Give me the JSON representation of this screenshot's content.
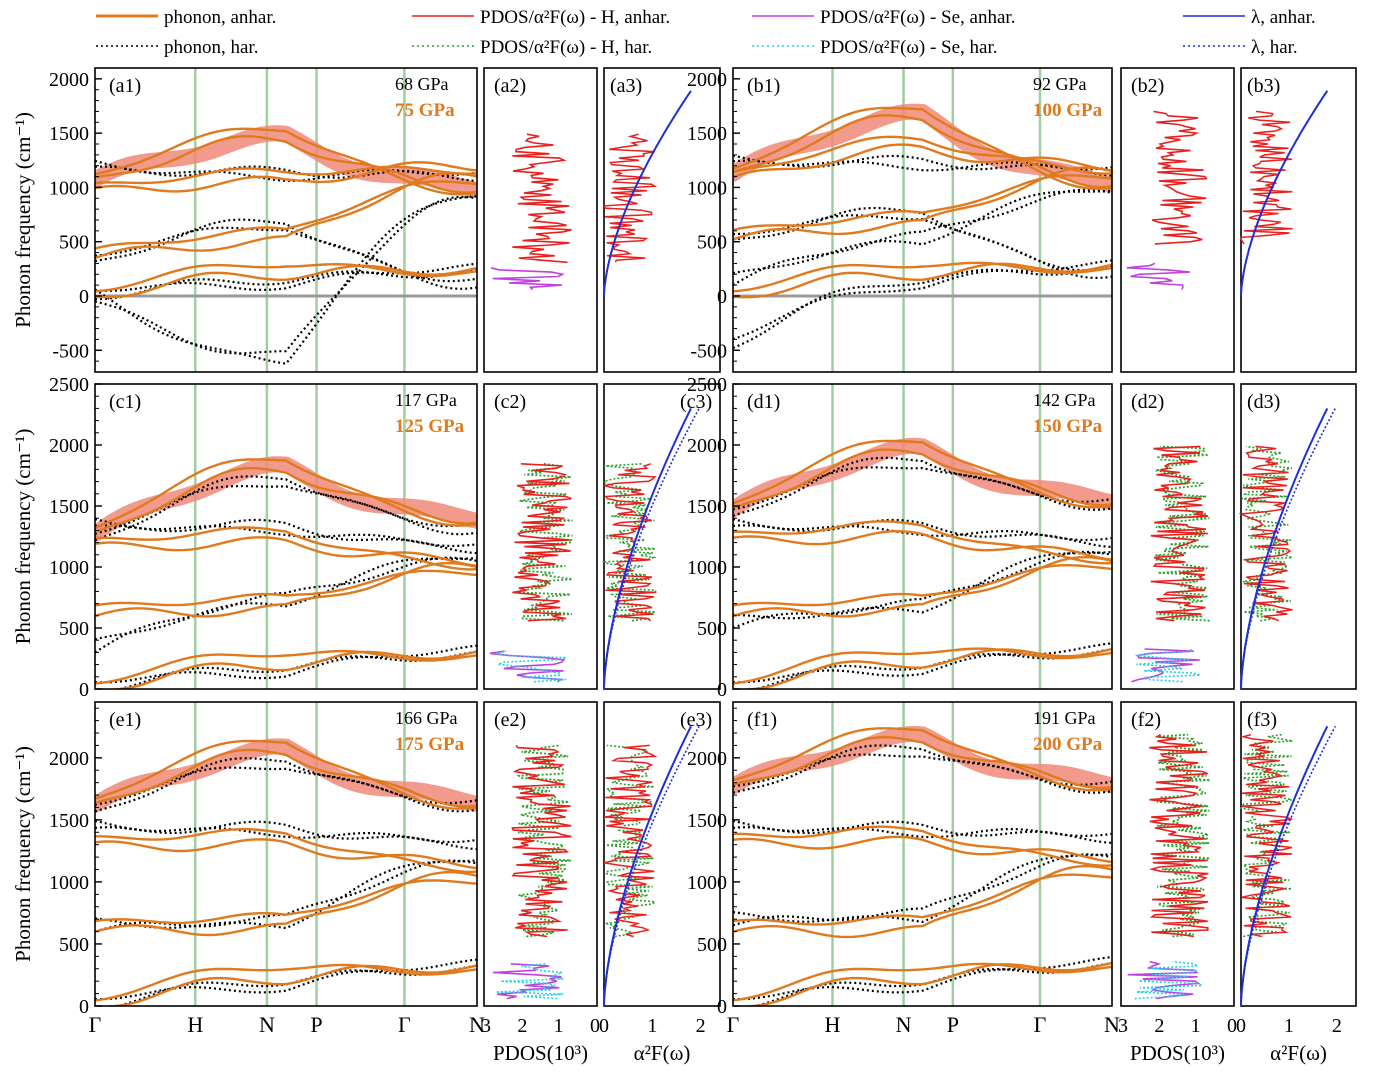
{
  "figure": {
    "legend": [
      {
        "text": "phonon, anhar.",
        "color": "#e07a1f",
        "dash": "solid"
      },
      {
        "text": "phonon, har.",
        "color": "#000000",
        "dash": "dot"
      },
      {
        "text": "PDOS/α²F(ω) - H, anhar.",
        "color": "#e8201e",
        "dash": "solid"
      },
      {
        "text": "PDOS/α²F(ω) - H, har.",
        "color": "#2aa02a",
        "dash": "dot"
      },
      {
        "text": "PDOS/α²F(ω) - Se, anhar.",
        "color": "#c040e0",
        "dash": "solid"
      },
      {
        "text": "PDOS/α²F(ω) - Se, har.",
        "color": "#22d0e8",
        "dash": "dot"
      },
      {
        "text": "λ, anhar.",
        "color": "#1f2fd6",
        "dash": "solid"
      },
      {
        "text": "λ, har.",
        "color": "#1f2fd6",
        "dash": "dot"
      }
    ],
    "ylabel": "Phonon frequency  (cm⁻¹)",
    "pdos_xlabel": "PDOS(10³)",
    "a2f_xlabel": "α²F(ω)",
    "kpoints": [
      "Γ",
      "H",
      "N",
      "P",
      "Γ",
      "N"
    ],
    "pdos_ticks": [
      "3",
      "2",
      "1",
      "0"
    ],
    "a2f_ticks": [
      "0",
      "1",
      "2"
    ],
    "colors": {
      "anhar": "#e07a1f",
      "band": "#f08878",
      "har": "#000000",
      "vline": "#9fcf9f",
      "zero": "#999999",
      "h_anhar": "#e8201e",
      "h_har": "#2aa02a",
      "se_anhar": "#c040e0",
      "se_har": "#22d0e8",
      "lambda": "#1f2fd6"
    }
  },
  "chart_data": [
    {
      "type": "line",
      "panel": "a",
      "labels": [
        "(a1)",
        "(a2)",
        "(a3)"
      ],
      "pressure_har": "68 GPa",
      "pressure_anhar": "75 GPa",
      "ylim": [
        -700,
        2100
      ],
      "yticks": [
        -500,
        0,
        500,
        1000,
        1500,
        2000
      ],
      "show_zero": true,
      "har_pdos": false,
      "anhar": [
        [
          350,
          500,
          1100
        ],
        [
          950,
          1050,
          1200
        ],
        [
          1050,
          1450,
          1000
        ],
        [
          0,
          200,
          250
        ]
      ],
      "har": [
        [
          -50,
          -550,
          900
        ],
        [
          1150,
          1150,
          1100
        ],
        [
          300,
          700,
          100
        ],
        [
          0,
          150,
          220
        ]
      ]
    },
    {
      "type": "line",
      "panel": "b",
      "labels": [
        "(b1)",
        "(b2)",
        "(b3)"
      ],
      "pressure_har": "92 GPa",
      "pressure_anhar": "100 GPa",
      "ylim": [
        -700,
        2100
      ],
      "yticks": [
        -500,
        0,
        500,
        1000,
        1500,
        2000
      ],
      "show_zero": true,
      "har_pdos": false,
      "anhar": [
        [
          520,
          650,
          1150
        ],
        [
          1050,
          1350,
          1200
        ],
        [
          1100,
          1650,
          1050
        ],
        [
          0,
          200,
          280
        ]
      ],
      "har": [
        [
          100,
          550,
          950
        ],
        [
          1200,
          1250,
          1150
        ],
        [
          500,
          800,
          200
        ],
        [
          -450,
          150,
          250
        ]
      ]
    },
    {
      "type": "line",
      "panel": "c",
      "labels": [
        "(c1)",
        "(c2)",
        "(c3)"
      ],
      "pressure_har": "117 GPa",
      "pressure_anhar": "125 GPa",
      "ylim": [
        0,
        2500
      ],
      "yticks": [
        0,
        500,
        1000,
        1500,
        2000,
        2500
      ],
      "show_zero": false,
      "har_pdos": true,
      "anhar": [
        [
          600,
          650,
          1000
        ],
        [
          1150,
          1200,
          1050
        ],
        [
          1250,
          1800,
          1400
        ],
        [
          0,
          200,
          300
        ]
      ],
      "har": [
        [
          300,
          750,
          1050
        ],
        [
          1300,
          1350,
          1150
        ],
        [
          1200,
          1750,
          1300
        ],
        [
          0,
          180,
          280
        ]
      ]
    },
    {
      "type": "line",
      "panel": "d",
      "labels": [
        "(d1)",
        "(d2)",
        "(d3)"
      ],
      "pressure_har": "142 GPa",
      "pressure_anhar": "150 GPa",
      "ylim": [
        0,
        2500
      ],
      "yticks": [
        0,
        500,
        1000,
        1500,
        2000,
        2500
      ],
      "show_zero": false,
      "har_pdos": true,
      "anhar": [
        [
          600,
          650,
          1050
        ],
        [
          1200,
          1250,
          1100
        ],
        [
          1450,
          1950,
          1550
        ],
        [
          0,
          220,
          320
        ]
      ],
      "har": [
        [
          500,
          700,
          1100
        ],
        [
          1300,
          1350,
          1200
        ],
        [
          1400,
          1900,
          1500
        ],
        [
          0,
          200,
          300
        ]
      ]
    },
    {
      "type": "line",
      "panel": "e",
      "labels": [
        "(e1)",
        "(e2)",
        "(e3)"
      ],
      "pressure_har": "166 GPa",
      "pressure_anhar": "175 GPa",
      "ylim": [
        0,
        2450
      ],
      "yticks": [
        0,
        500,
        1000,
        1500,
        2000
      ],
      "show_zero": false,
      "har_pdos": true,
      "anhar": [
        [
          600,
          620,
          1050
        ],
        [
          1280,
          1300,
          1150
        ],
        [
          1600,
          2050,
          1650
        ],
        [
          0,
          220,
          320
        ]
      ],
      "har": [
        [
          600,
          700,
          1150
        ],
        [
          1400,
          1450,
          1300
        ],
        [
          1550,
          2000,
          1600
        ],
        [
          0,
          200,
          300
        ]
      ]
    },
    {
      "type": "line",
      "panel": "f",
      "labels": [
        "(f1)",
        "(f2)",
        "(f3)"
      ],
      "pressure_har": "191 GPa",
      "pressure_anhar": "200 GPa",
      "ylim": [
        0,
        2450
      ],
      "yticks": [
        0,
        500,
        1000,
        1500,
        2000
      ],
      "show_zero": false,
      "har_pdos": true,
      "anhar": [
        [
          600,
          600,
          1100
        ],
        [
          1300,
          1320,
          1200
        ],
        [
          1750,
          2150,
          1800
        ],
        [
          0,
          220,
          340
        ]
      ],
      "har": [
        [
          650,
          750,
          1200
        ],
        [
          1400,
          1450,
          1350
        ],
        [
          1700,
          2100,
          1750
        ],
        [
          0,
          200,
          320
        ]
      ]
    }
  ]
}
